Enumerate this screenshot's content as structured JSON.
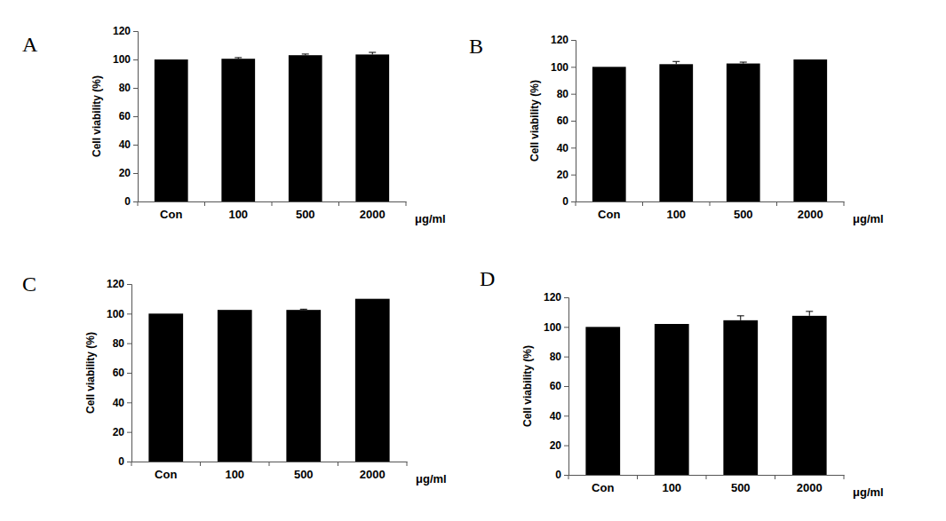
{
  "chart_data": [
    {
      "type": "bar",
      "title": "A",
      "categories": [
        "Con",
        "100",
        "500",
        "2000"
      ],
      "values": [
        100,
        100.5,
        103,
        103.5
      ],
      "errors": [
        0,
        0.8,
        0.8,
        1.5
      ],
      "x_label": "μg/ml",
      "y_label": "Cell viability (%)",
      "color": "#000000",
      "ylim": [
        0,
        120
      ],
      "yticks": [
        0,
        20,
        40,
        60,
        80,
        100,
        120
      ]
    },
    {
      "type": "bar",
      "title": "B",
      "categories": [
        "Con",
        "100",
        "500",
        "2000"
      ],
      "values": [
        100,
        102,
        102.5,
        105.5
      ],
      "errors": [
        0,
        2,
        1,
        0
      ],
      "x_label": "μg/ml",
      "y_label": "Cell viability (%)",
      "color": "#000000",
      "ylim": [
        0,
        120
      ],
      "yticks": [
        0,
        20,
        40,
        60,
        80,
        100,
        120
      ]
    },
    {
      "type": "bar",
      "title": "C",
      "categories": [
        "Con",
        "100",
        "500",
        "2000"
      ],
      "values": [
        100,
        102.5,
        102.5,
        110
      ],
      "errors": [
        0,
        0,
        0.5,
        0
      ],
      "x_label": "μg/ml",
      "y_label": "Cell viability (%)",
      "color": "#000000",
      "ylim": [
        0,
        120
      ],
      "yticks": [
        0,
        20,
        40,
        60,
        80,
        100,
        120
      ]
    },
    {
      "type": "bar",
      "title": "D",
      "categories": [
        "Con",
        "100",
        "500",
        "2000"
      ],
      "values": [
        100,
        102,
        104.5,
        107.5
      ],
      "errors": [
        0,
        0,
        3,
        3
      ],
      "x_label": "μg/ml",
      "y_label": "Cell viability (%)",
      "color": "#000000",
      "ylim": [
        0,
        120
      ],
      "yticks": [
        0,
        20,
        40,
        60,
        80,
        100,
        120
      ]
    }
  ]
}
